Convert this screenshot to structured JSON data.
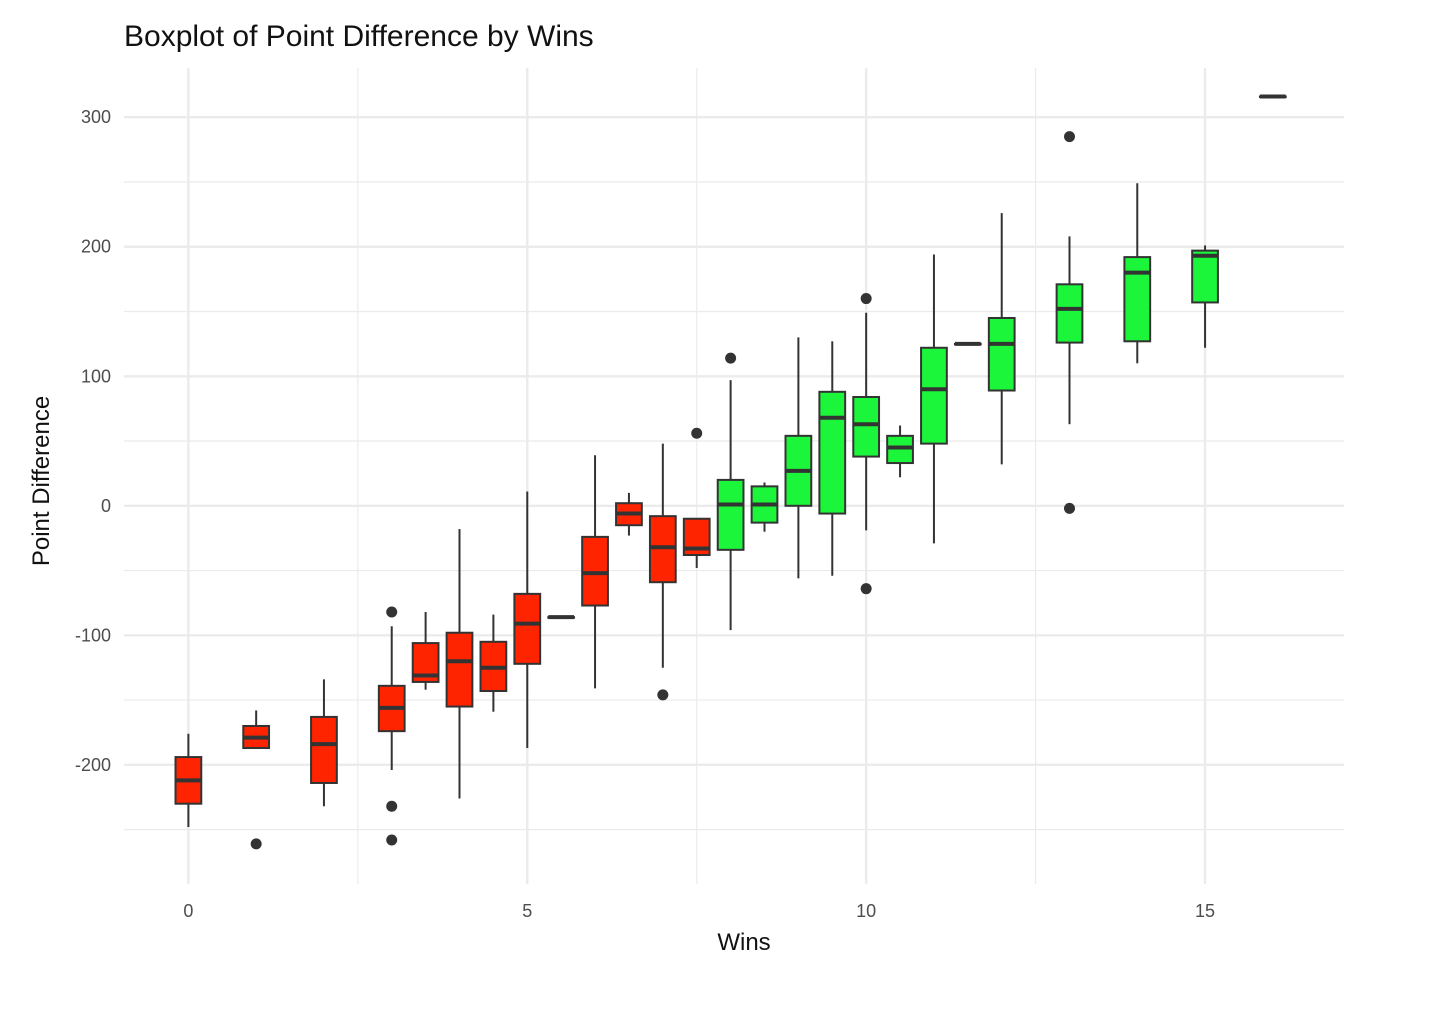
{
  "chart_data": {
    "type": "boxplot",
    "title": "Boxplot of Point Difference by Wins",
    "xlabel": "Wins",
    "ylabel": "Point Difference",
    "xlim": [
      -0.95,
      17.05
    ],
    "ylim": [
      -292,
      338
    ],
    "x_ticks": [
      0,
      5,
      10,
      15
    ],
    "y_ticks": [
      -200,
      -100,
      0,
      100,
      200,
      300
    ],
    "x_tick_labels": [
      "0",
      "5",
      "10",
      "15"
    ],
    "y_tick_labels": [
      "-200",
      "-100",
      "0",
      "100",
      "200",
      "300"
    ],
    "grid": true,
    "legend": "none",
    "colors": {
      "losing": "#ff2400",
      "winning": "#1bf63a",
      "outline": "#333333",
      "grid": "#ebebeb",
      "points": "#333333"
    },
    "boxes": [
      {
        "x": 0,
        "q1": -230,
        "median": -212,
        "q3": -194,
        "whisker_low": -248,
        "whisker_high": -176,
        "group": "losing",
        "outliers": []
      },
      {
        "x": 1,
        "q1": -187,
        "median": -179,
        "q3": -170,
        "whisker_low": -187,
        "whisker_high": -158,
        "group": "losing",
        "outliers": [
          -261
        ]
      },
      {
        "x": 2,
        "q1": -214,
        "median": -184,
        "q3": -163,
        "whisker_low": -232,
        "whisker_high": -134,
        "group": "losing",
        "outliers": []
      },
      {
        "x": 3,
        "q1": -174,
        "median": -156,
        "q3": -139,
        "whisker_low": -204,
        "whisker_high": -93,
        "group": "losing",
        "outliers": [
          -82,
          -232,
          -258
        ]
      },
      {
        "x": 3.5,
        "q1": -136,
        "median": -131,
        "q3": -106,
        "whisker_low": -142,
        "whisker_high": -82,
        "group": "losing",
        "outliers": []
      },
      {
        "x": 4,
        "q1": -155,
        "median": -120,
        "q3": -98,
        "whisker_low": -226,
        "whisker_high": -18,
        "group": "losing",
        "outliers": []
      },
      {
        "x": 4.5,
        "q1": -143,
        "median": -125,
        "q3": -105,
        "whisker_low": -159,
        "whisker_high": -84,
        "group": "losing",
        "outliers": []
      },
      {
        "x": 5,
        "q1": -122,
        "median": -91,
        "q3": -68,
        "whisker_low": -187,
        "whisker_high": 11,
        "group": "losing",
        "outliers": []
      },
      {
        "x": 5.5,
        "q1": -86,
        "median": -86,
        "q3": -86,
        "whisker_low": -86,
        "whisker_high": -86,
        "group": "losing",
        "outliers": []
      },
      {
        "x": 6,
        "q1": -77,
        "median": -52,
        "q3": -24,
        "whisker_low": -141,
        "whisker_high": 39,
        "group": "losing",
        "outliers": []
      },
      {
        "x": 6.5,
        "q1": -15,
        "median": -6,
        "q3": 2,
        "whisker_low": -23,
        "whisker_high": 10,
        "group": "losing",
        "outliers": []
      },
      {
        "x": 7,
        "q1": -59,
        "median": -32,
        "q3": -8,
        "whisker_low": -125,
        "whisker_high": 48,
        "group": "losing",
        "outliers": [
          -146
        ]
      },
      {
        "x": 7.5,
        "q1": -38,
        "median": -33,
        "q3": -10,
        "whisker_low": -48,
        "whisker_high": -10,
        "group": "losing",
        "outliers": [
          56
        ]
      },
      {
        "x": 8,
        "q1": -34,
        "median": 1,
        "q3": 20,
        "whisker_low": -96,
        "whisker_high": 97,
        "group": "winning",
        "outliers": [
          114
        ]
      },
      {
        "x": 8.5,
        "q1": -13,
        "median": 1,
        "q3": 15,
        "whisker_low": -20,
        "whisker_high": 18,
        "group": "winning",
        "outliers": []
      },
      {
        "x": 9,
        "q1": 0,
        "median": 27,
        "q3": 54,
        "whisker_low": -56,
        "whisker_high": 130,
        "group": "winning",
        "outliers": []
      },
      {
        "x": 9.5,
        "q1": -6,
        "median": 68,
        "q3": 88,
        "whisker_low": -54,
        "whisker_high": 127,
        "group": "winning",
        "outliers": []
      },
      {
        "x": 10,
        "q1": 38,
        "median": 63,
        "q3": 84,
        "whisker_low": -19,
        "whisker_high": 149,
        "group": "winning",
        "outliers": [
          160,
          -64
        ]
      },
      {
        "x": 10.5,
        "q1": 33,
        "median": 45,
        "q3": 54,
        "whisker_low": 22,
        "whisker_high": 62,
        "group": "winning",
        "outliers": []
      },
      {
        "x": 11,
        "q1": 48,
        "median": 90,
        "q3": 122,
        "whisker_low": -29,
        "whisker_high": 194,
        "group": "winning",
        "outliers": []
      },
      {
        "x": 11.5,
        "q1": 125,
        "median": 125,
        "q3": 125,
        "whisker_low": 125,
        "whisker_high": 125,
        "group": "winning",
        "outliers": []
      },
      {
        "x": 12,
        "q1": 89,
        "median": 125,
        "q3": 145,
        "whisker_low": 32,
        "whisker_high": 226,
        "group": "winning",
        "outliers": []
      },
      {
        "x": 13,
        "q1": 126,
        "median": 152,
        "q3": 171,
        "whisker_low": 63,
        "whisker_high": 208,
        "group": "winning",
        "outliers": [
          285,
          -2
        ]
      },
      {
        "x": 14,
        "q1": 127,
        "median": 180,
        "q3": 192,
        "whisker_low": 110,
        "whisker_high": 249,
        "group": "winning",
        "outliers": []
      },
      {
        "x": 15,
        "q1": 157,
        "median": 193,
        "q3": 197,
        "whisker_low": 122,
        "whisker_high": 201,
        "group": "winning",
        "outliers": []
      },
      {
        "x": 16,
        "q1": 316,
        "median": 316,
        "q3": 316,
        "whisker_low": 316,
        "whisker_high": 316,
        "group": "winning",
        "outliers": []
      }
    ]
  }
}
